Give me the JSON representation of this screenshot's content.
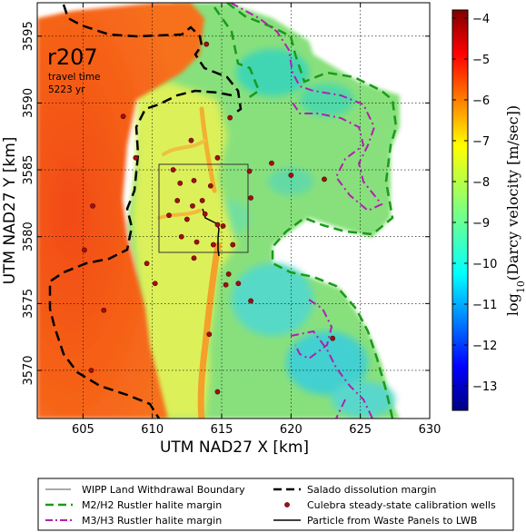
{
  "map": {
    "run_label": "r207",
    "travel_time_label": "travel time",
    "travel_time_value": "5223 yr",
    "x_axis_title": "UTM NAD27 X [km]",
    "y_axis_title": "UTM NAD27 Y [km]",
    "x_ticks": [
      "605",
      "610",
      "615",
      "620",
      "625",
      "630"
    ],
    "y_ticks": [
      "3570",
      "3575",
      "3580",
      "3585",
      "3590",
      "3595"
    ],
    "x_range_km": [
      601.7,
      630
    ],
    "y_range_km": [
      3566.4,
      3597.5
    ],
    "grid": true
  },
  "colorbar": {
    "title_prefix": "log",
    "title_subscript": "10",
    "title_suffix": "(Darcy velocity [m/sec])",
    "ticks": [
      "-4",
      "-5",
      "-6",
      "-7",
      "-8",
      "-9",
      "-10",
      "-11",
      "-12",
      "-13"
    ],
    "range": [
      -13.6,
      -3.8
    ],
    "colormap": [
      "#00007f",
      "#0000ff",
      "#007fff",
      "#00ffff",
      "#7fff7f",
      "#ffff00",
      "#ff7f00",
      "#ff0000",
      "#7f0000"
    ]
  },
  "legend": {
    "placement": "bottom",
    "items": [
      {
        "label": "WIPP Land Withdrawal Boundary",
        "color": "#555555",
        "style": "thin-solid"
      },
      {
        "label": "Salado dissolution margin",
        "color": "#000000",
        "style": "dashed"
      },
      {
        "label": "M2/H2 Rustler halite margin",
        "color": "#1a9a1a",
        "style": "dashed"
      },
      {
        "label": "Culebra steady-state calibration wells",
        "color": "#a01010",
        "style": "dot"
      },
      {
        "label": "M3/H3 Rustler halite margin",
        "color": "#b020b0",
        "style": "dash-dot"
      },
      {
        "label": "Particle from Waste Panels to LWB",
        "color": "#000000",
        "style": "solid"
      }
    ]
  },
  "wells": [
    [
      605.7,
      3582.3
    ],
    [
      605.1,
      3579.0
    ],
    [
      608.8,
      3585.9
    ],
    [
      606.5,
      3574.5
    ],
    [
      605.6,
      3570.0
    ],
    [
      607.9,
      3589.0
    ],
    [
      612.8,
      3587.2
    ],
    [
      613.9,
      3594.4
    ],
    [
      615.6,
      3588.9
    ],
    [
      614.7,
      3585.9
    ],
    [
      611.5,
      3585.0
    ],
    [
      612.0,
      3584.0
    ],
    [
      613.0,
      3584.2
    ],
    [
      614.2,
      3583.8
    ],
    [
      611.8,
      3582.7
    ],
    [
      612.9,
      3582.3
    ],
    [
      613.6,
      3582.7
    ],
    [
      611.2,
      3581.6
    ],
    [
      612.5,
      3581.3
    ],
    [
      613.8,
      3581.7
    ],
    [
      614.7,
      3580.9
    ],
    [
      615.1,
      3580.8
    ],
    [
      613.2,
      3579.6
    ],
    [
      612.1,
      3580.0
    ],
    [
      614.4,
      3579.4
    ],
    [
      615.8,
      3579.4
    ],
    [
      610.2,
      3576.5
    ],
    [
      615.3,
      3576.4
    ],
    [
      616.2,
      3576.5
    ],
    [
      617.1,
      3575.2
    ],
    [
      614.1,
      3572.7
    ],
    [
      613.0,
      3578.4
    ],
    [
      615.5,
      3577.2
    ],
    [
      617.0,
      3584.9
    ],
    [
      618.6,
      3585.5
    ],
    [
      617.1,
      3582.9
    ],
    [
      620.0,
      3584.6
    ],
    [
      622.4,
      3584.3
    ],
    [
      623.0,
      3572.4
    ],
    [
      614.7,
      3568.4
    ],
    [
      609.6,
      3578.0
    ]
  ]
}
